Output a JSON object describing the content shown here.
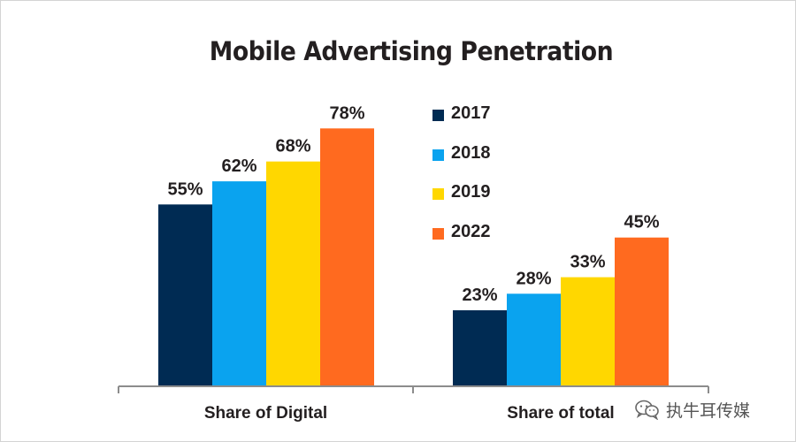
{
  "title": "Mobile Advertising Penetration",
  "watermark": "执牛耳传媒",
  "colors": {
    "2017": "#002b53",
    "2018": "#0aa3ef",
    "2019": "#ffd700",
    "2022": "#ff6a1f",
    "axis": "#8c8c8c",
    "text": "#231f20"
  },
  "chart_data": {
    "type": "bar",
    "title": "Mobile Advertising Penetration",
    "categories": [
      "Share of Digital",
      "Share of total"
    ],
    "series": [
      {
        "name": "2017",
        "values": [
          55,
          23
        ],
        "labels": [
          "55%",
          "23%"
        ],
        "color": "#002b53"
      },
      {
        "name": "2018",
        "values": [
          62,
          28
        ],
        "labels": [
          "62%",
          "28%"
        ],
        "color": "#0aa3ef"
      },
      {
        "name": "2019",
        "values": [
          68,
          33
        ],
        "labels": [
          "68%",
          "33%"
        ],
        "color": "#ffd700"
      },
      {
        "name": "2022",
        "values": [
          78,
          45
        ],
        "labels": [
          "78%",
          "45%"
        ],
        "color": "#ff6a1f"
      }
    ],
    "unit": "%",
    "ylim": [
      0,
      100
    ],
    "grid": false,
    "legend": "right"
  }
}
